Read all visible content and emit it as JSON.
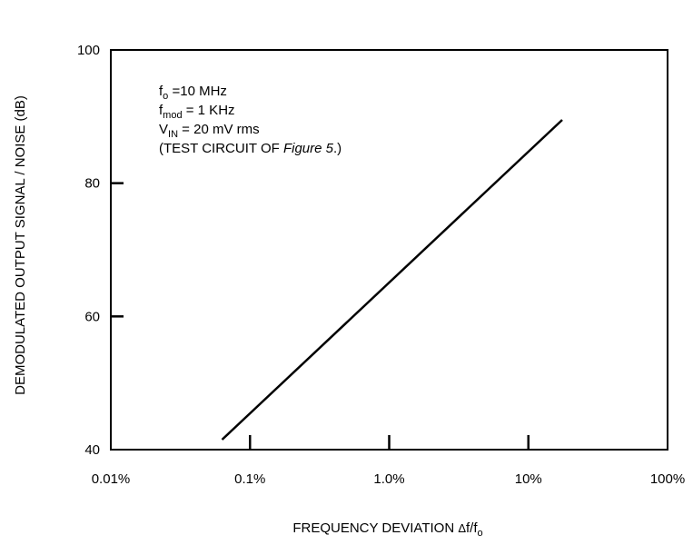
{
  "chart_data": {
    "type": "line",
    "title": "",
    "xlabel": {
      "main": "FREQUENCY DEVIATION ",
      "delta": "Δ",
      "rest": "f/f",
      "sub": "o"
    },
    "ylabel": "DEMODULATED OUTPUT SIGNAL / NOISE (dB)",
    "x_scale": "log",
    "xlim": [
      0.01,
      100
    ],
    "ylim": [
      40,
      100
    ],
    "x_ticks": [
      0.01,
      0.1,
      1.0,
      10,
      100
    ],
    "x_tick_labels": [
      "0.01%",
      "0.1%",
      "1.0%",
      "10%",
      "100%"
    ],
    "y_ticks": [
      40,
      60,
      80,
      100
    ],
    "y_tick_labels": [
      "40",
      "60",
      "80",
      "100"
    ],
    "grid": false,
    "series": [
      {
        "x": [
          0.063,
          17.5
        ],
        "y": [
          41.5,
          89.5
        ]
      }
    ],
    "annotations": {
      "line1": {
        "a": "f",
        "sub": "o",
        "b": " =10 MHz"
      },
      "line2": {
        "a": "f",
        "sub": "mod",
        "b": " = 1 KHz"
      },
      "line3": {
        "a": "V",
        "sub": "IN",
        "b": " = 20 mV rms"
      },
      "line4": {
        "a": "(TEST CIRCUIT OF ",
        "italic": "Figure 5",
        "b": ".)"
      }
    }
  }
}
